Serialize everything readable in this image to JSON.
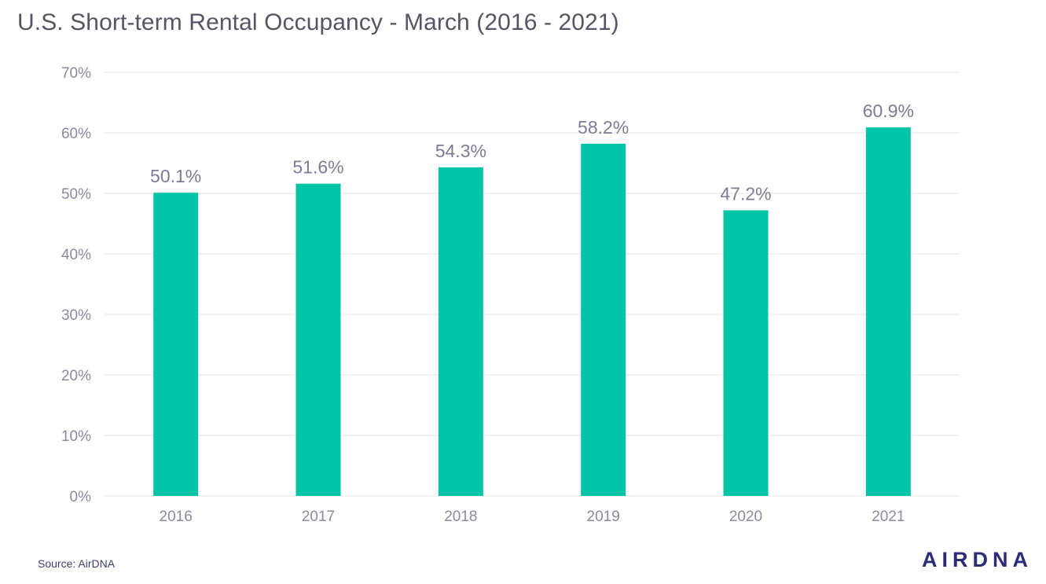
{
  "chart_data": {
    "type": "bar",
    "title": "U.S. Short-term Rental Occupancy - March (2016 - 2021)",
    "categories": [
      "2016",
      "2017",
      "2018",
      "2019",
      "2020",
      "2021"
    ],
    "values": [
      50.1,
      51.6,
      54.3,
      58.2,
      47.2,
      60.9
    ],
    "data_labels": [
      "50.1%",
      "51.6%",
      "54.3%",
      "58.2%",
      "47.2%",
      "60.9%"
    ],
    "xlabel": "",
    "ylabel": "",
    "ylim": [
      0,
      70
    ],
    "y_ticks": [
      0,
      10,
      20,
      30,
      40,
      50,
      60,
      70
    ],
    "y_tick_labels": [
      "0%",
      "10%",
      "20%",
      "30%",
      "40%",
      "50%",
      "60%",
      "70%"
    ],
    "grid": true,
    "legend": "none",
    "bar_color": "#00c4a7"
  },
  "source": "Source: AirDNA",
  "brand": "AIRDNA",
  "colors": {
    "bar": "#00c4a7",
    "grid": "#e6e6e6",
    "tick_text": "#8a8aa0",
    "data_label": "#7c7c94",
    "title": "#555566",
    "brand": "#2c2c78"
  }
}
